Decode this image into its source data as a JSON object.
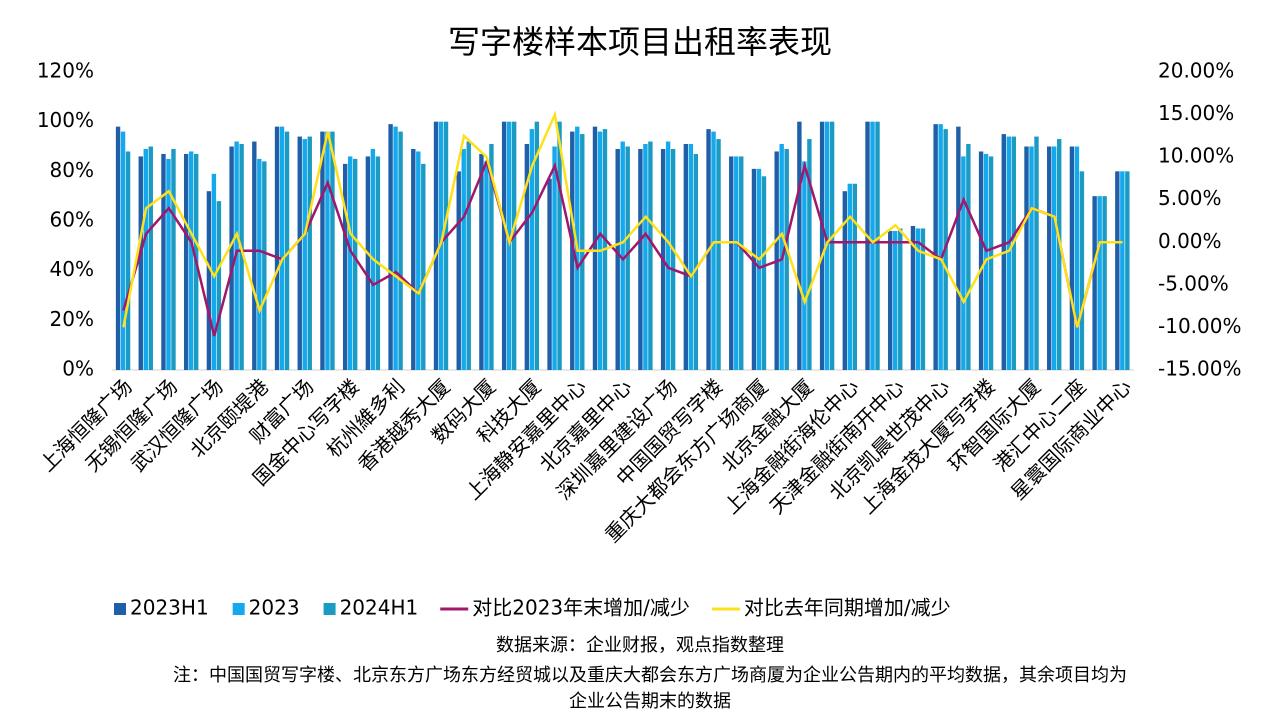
{
  "chart_data": {
    "type": "bar_line",
    "title": "写字楼样本项目出租率表现",
    "categories": [
      "上海恒隆广场",
      null,
      "无锡恒隆广场",
      null,
      "武汉恒隆广场",
      null,
      "北京颐堤港",
      null,
      "财富广场",
      null,
      "国金中心写字楼",
      null,
      "杭州維多利",
      null,
      "香港越秀大厦",
      null,
      "数码大厦",
      null,
      "科技大厦",
      null,
      "上海静安嘉里中心",
      null,
      "北京嘉里中心",
      null,
      "深圳嘉里建设广场",
      null,
      "中国国贸写字楼",
      null,
      "重庆大都会东方广场商厦",
      null,
      "北京金融大厦",
      null,
      "上海金融街海伦中心",
      null,
      "天津金融街南开中心",
      null,
      "北京凯晨世茂中心",
      null,
      "上海金茂大厦写字楼",
      null,
      "环智国际大厦",
      null,
      "港汇中心二座",
      null,
      "星寰国际商业中心"
    ],
    "series": [
      {
        "name": "2023H1",
        "color": "#1f5fa8",
        "values": [
          98,
          86,
          87,
          87,
          72,
          90,
          92,
          98,
          94,
          96,
          83,
          86,
          99,
          89,
          100,
          80,
          87,
          100,
          91,
          77,
          96,
          98,
          89,
          89,
          89,
          91,
          97,
          86,
          81,
          88,
          100,
          100,
          72,
          100,
          56,
          58,
          99,
          98,
          88,
          95,
          90,
          90,
          90,
          70,
          80
        ]
      },
      {
        "name": "2023",
        "color": "#14a8ec",
        "values": [
          96,
          89,
          85,
          88,
          79,
          92,
          85,
          98,
          93,
          96,
          86,
          89,
          98,
          88,
          100,
          89,
          84,
          100,
          97,
          90,
          98,
          96,
          92,
          91,
          92,
          91,
          96,
          86,
          81,
          91,
          84,
          100,
          75,
          100,
          56,
          57,
          99,
          86,
          87,
          94,
          90,
          90,
          90,
          70,
          80
        ]
      },
      {
        "name": "2024H1",
        "color": "#1b9bc4",
        "values": [
          88,
          90,
          89,
          87,
          68,
          91,
          84,
          96,
          94,
          96,
          85,
          86,
          96,
          83,
          100,
          92,
          91,
          100,
          100,
          100,
          95,
          97,
          90,
          92,
          89,
          87,
          93,
          86,
          78,
          89,
          93,
          100,
          75,
          100,
          57,
          57,
          97,
          91,
          86,
          94,
          94,
          93,
          80,
          70,
          80
        ]
      },
      {
        "name": "对比2023年末增加/减少",
        "color": "#a0186a",
        "axis": "y2",
        "values": [
          -8,
          1,
          4,
          0,
          -11,
          -1,
          -1,
          -2,
          1,
          7,
          -1,
          -5,
          -3.5,
          -6,
          0,
          3,
          9.5,
          0,
          3.5,
          9,
          -3,
          1,
          -2,
          1,
          -3,
          -4,
          0,
          0,
          -3,
          -2,
          9,
          0,
          0,
          0,
          0,
          0,
          -2,
          5,
          -1,
          0,
          4,
          3,
          -10,
          0,
          0
        ]
      },
      {
        "name": "对比去年同期增加/减少",
        "color": "#ffe01a",
        "axis": "y2",
        "values": [
          -10,
          4,
          6,
          1,
          -4,
          1,
          -8,
          -2,
          1,
          13,
          1,
          -2,
          -4,
          -6,
          0,
          12.5,
          10,
          0,
          9,
          15,
          -1,
          -1,
          0,
          3,
          0,
          -4,
          0,
          0,
          -2,
          1,
          -7,
          0,
          3,
          0,
          2,
          -1,
          -2,
          -7,
          -2,
          -1,
          4,
          3,
          -10,
          0,
          0
        ]
      }
    ],
    "ylim": [
      0,
      120
    ],
    "yticks": [
      {
        "value": 0,
        "label": "0%"
      },
      {
        "value": 20,
        "label": "20%"
      },
      {
        "value": 40,
        "label": "40%"
      },
      {
        "value": 60,
        "label": "60%"
      },
      {
        "value": 80,
        "label": "80%"
      },
      {
        "value": 100,
        "label": "100%"
      },
      {
        "value": 120,
        "label": "120%"
      }
    ],
    "y2lim": [
      -15,
      20
    ],
    "y2ticks": [
      {
        "value": -15,
        "label": "-15.00%"
      },
      {
        "value": -10,
        "label": "-10.00%"
      },
      {
        "value": -5,
        "label": "-5.00%"
      },
      {
        "value": 0,
        "label": "0.00%"
      },
      {
        "value": 5,
        "label": "5.00%"
      },
      {
        "value": 10,
        "label": "10.00%"
      },
      {
        "value": 15,
        "label": "15.00%"
      },
      {
        "value": 20,
        "label": "20.00%"
      }
    ],
    "source": "数据来源：企业财报，观点指数整理",
    "note": [
      "注：中国国贸写字楼、北京东方广场东方经贸城以及重庆大都会东方广场商厦为企业公告期内的平均数据，其余项目均为",
      "企业公告期末的数据"
    ]
  }
}
